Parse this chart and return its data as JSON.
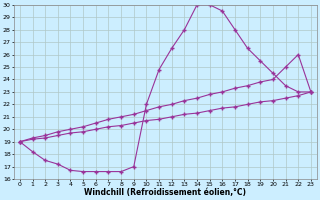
{
  "xlabel": "Windchill (Refroidissement éolien,°C)",
  "xlim": [
    -0.5,
    23.5
  ],
  "ylim": [
    16,
    30
  ],
  "yticks": [
    16,
    17,
    18,
    19,
    20,
    21,
    22,
    23,
    24,
    25,
    26,
    27,
    28,
    29,
    30
  ],
  "xticks": [
    0,
    1,
    2,
    3,
    4,
    5,
    6,
    7,
    8,
    9,
    10,
    11,
    12,
    13,
    14,
    15,
    16,
    17,
    18,
    19,
    20,
    21,
    22,
    23
  ],
  "background_color": "#cceeff",
  "line_color": "#993399",
  "grid_color": "#b0c8c8",
  "line1_x": [
    0,
    1,
    2,
    3,
    4,
    5,
    6,
    7,
    8,
    9,
    10,
    11,
    12,
    13,
    14,
    15,
    16,
    17,
    18,
    19,
    20,
    21,
    22,
    23
  ],
  "line1_y": [
    19.0,
    18.2,
    17.5,
    17.2,
    16.7,
    16.6,
    16.6,
    16.6,
    16.6,
    17.0,
    22.0,
    24.8,
    26.5,
    28.0,
    30.0,
    30.0,
    29.5,
    28.0,
    26.5,
    25.5,
    24.5,
    23.5,
    23.0,
    23.0
  ],
  "line2_x": [
    0,
    1,
    2,
    3,
    4,
    5,
    6,
    7,
    8,
    9,
    10,
    11,
    12,
    13,
    14,
    15,
    16,
    17,
    18,
    19,
    20,
    21,
    22,
    23
  ],
  "line2_y": [
    19.0,
    19.3,
    19.5,
    19.8,
    20.0,
    20.2,
    20.5,
    20.8,
    21.0,
    21.2,
    21.5,
    21.8,
    22.0,
    22.3,
    22.5,
    22.8,
    23.0,
    23.3,
    23.5,
    23.8,
    24.0,
    25.0,
    26.0,
    23.0
  ],
  "line3_x": [
    0,
    1,
    2,
    3,
    4,
    5,
    6,
    7,
    8,
    9,
    10,
    11,
    12,
    13,
    14,
    15,
    16,
    17,
    18,
    19,
    20,
    21,
    22,
    23
  ],
  "line3_y": [
    19.0,
    19.2,
    19.3,
    19.5,
    19.7,
    19.8,
    20.0,
    20.2,
    20.3,
    20.5,
    20.7,
    20.8,
    21.0,
    21.2,
    21.3,
    21.5,
    21.7,
    21.8,
    22.0,
    22.2,
    22.3,
    22.5,
    22.7,
    23.0
  ]
}
